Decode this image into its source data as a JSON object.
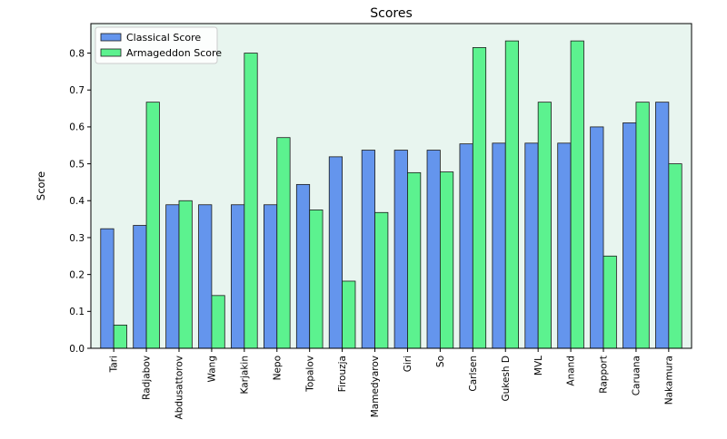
{
  "chart_data": {
    "type": "bar",
    "title": "Scores",
    "xlabel": "",
    "ylabel": "Score",
    "ylim": [
      0,
      0.88
    ],
    "yticks": [
      "0.0",
      "0.1",
      "0.2",
      "0.3",
      "0.4",
      "0.5",
      "0.6",
      "0.7",
      "0.8"
    ],
    "grid": false,
    "legend_position": "top-left",
    "plot_background": "#e8f5ef",
    "categories": [
      "Tari",
      "Radjabov",
      "Abdusattorov",
      "Wang",
      "Karjakin",
      "Nepo",
      "Topalov",
      "Firouzja",
      "Mamedyarov",
      "Giri",
      "So",
      "Carlsen",
      "Gukesh D",
      "MVL",
      "Anand",
      "Rapport",
      "Caruana",
      "Nakamura"
    ],
    "series": [
      {
        "name": "Classical Score",
        "color": "#6495ed",
        "values": [
          0.324,
          0.333,
          0.389,
          0.389,
          0.389,
          0.389,
          0.444,
          0.519,
          0.537,
          0.537,
          0.537,
          0.554,
          0.556,
          0.556,
          0.556,
          0.6,
          0.611,
          0.667
        ]
      },
      {
        "name": "Armageddon Score",
        "color": "#5cf28f",
        "values": [
          0.063,
          0.667,
          0.4,
          0.143,
          0.8,
          0.571,
          0.375,
          0.182,
          0.368,
          0.476,
          0.478,
          0.815,
          0.833,
          0.667,
          0.833,
          0.25,
          0.667,
          0.5
        ]
      }
    ]
  }
}
